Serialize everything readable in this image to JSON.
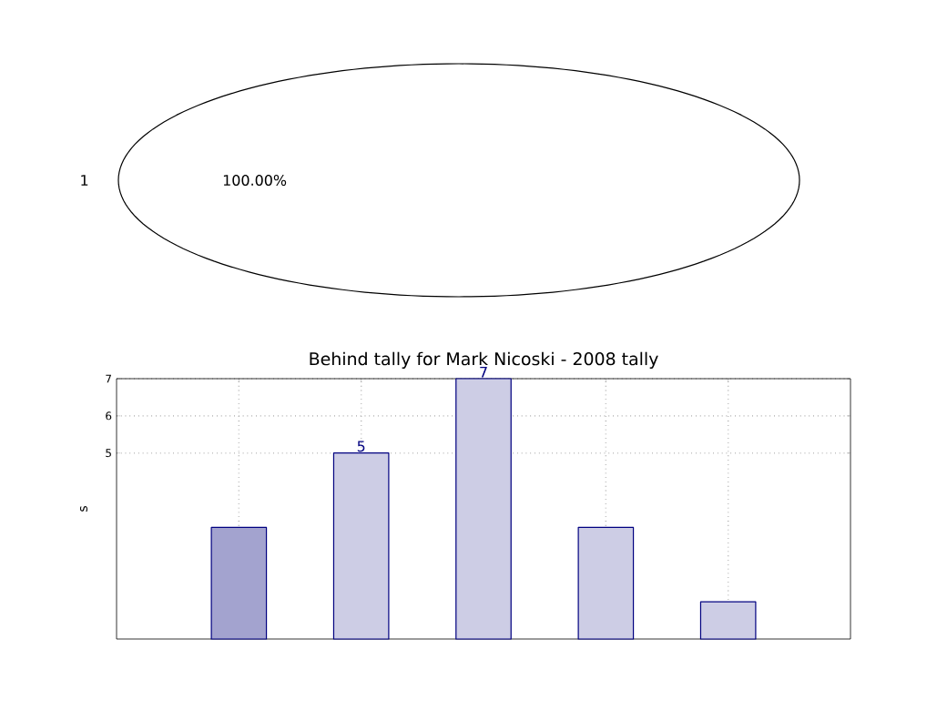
{
  "chart_data": [
    {
      "type": "pie",
      "categories": [
        "1"
      ],
      "values": [
        100
      ],
      "colors": [
        "#ffffff"
      ],
      "value_labels": [
        "100.00%"
      ]
    },
    {
      "type": "bar",
      "title": "Behind tally for Mark Nicoski - 2008 tally",
      "ylabel": "s",
      "categories": [
        null,
        null,
        null,
        null,
        null
      ],
      "values": [
        3,
        5,
        7,
        3,
        1
      ],
      "colors": [
        "#a3a3cf",
        "#cdcde5",
        "#cdcde5",
        "#cdcde5",
        "#cdcde5"
      ],
      "value_labels": [
        null,
        "5",
        "7",
        null,
        null
      ],
      "ylim": [
        0,
        7
      ],
      "yticks": [
        5,
        6,
        7
      ],
      "grid": true
    }
  ]
}
